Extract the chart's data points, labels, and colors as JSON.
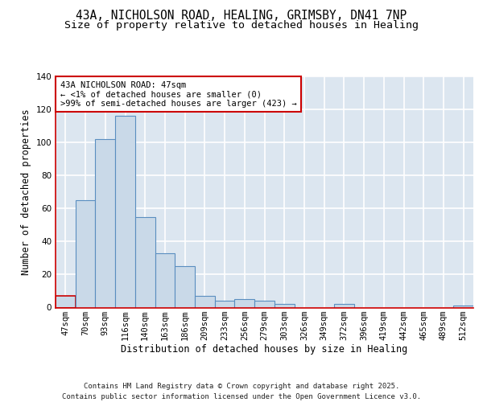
{
  "title1": "43A, NICHOLSON ROAD, HEALING, GRIMSBY, DN41 7NP",
  "title2": "Size of property relative to detached houses in Healing",
  "xlabel": "Distribution of detached houses by size in Healing",
  "ylabel": "Number of detached properties",
  "bin_labels": [
    "47sqm",
    "70sqm",
    "93sqm",
    "116sqm",
    "140sqm",
    "163sqm",
    "186sqm",
    "209sqm",
    "233sqm",
    "256sqm",
    "279sqm",
    "303sqm",
    "326sqm",
    "349sqm",
    "372sqm",
    "396sqm",
    "419sqm",
    "442sqm",
    "465sqm",
    "489sqm",
    "512sqm"
  ],
  "bar_heights": [
    7,
    65,
    102,
    116,
    55,
    33,
    25,
    7,
    4,
    5,
    4,
    2,
    0,
    0,
    2,
    0,
    0,
    0,
    0,
    0,
    1
  ],
  "bar_color": "#c9d9e8",
  "bar_edge_color": "#5a8ec0",
  "highlight_bar_index": 0,
  "highlight_bar_edge_color": "#cc0000",
  "background_color": "#dce6f0",
  "grid_color": "#ffffff",
  "annotation_text": "43A NICHOLSON ROAD: 47sqm\n← <1% of detached houses are smaller (0)\n>99% of semi-detached houses are larger (423) →",
  "annotation_box_color": "#ffffff",
  "annotation_box_edge_color": "#cc0000",
  "ylim": [
    0,
    140
  ],
  "yticks": [
    0,
    20,
    40,
    60,
    80,
    100,
    120,
    140
  ],
  "footer_text": "Contains HM Land Registry data © Crown copyright and database right 2025.\nContains public sector information licensed under the Open Government Licence v3.0.",
  "title_fontsize": 10.5,
  "subtitle_fontsize": 9.5,
  "axis_label_fontsize": 8.5,
  "tick_fontsize": 7.5,
  "annotation_fontsize": 7.5,
  "footer_fontsize": 6.5
}
